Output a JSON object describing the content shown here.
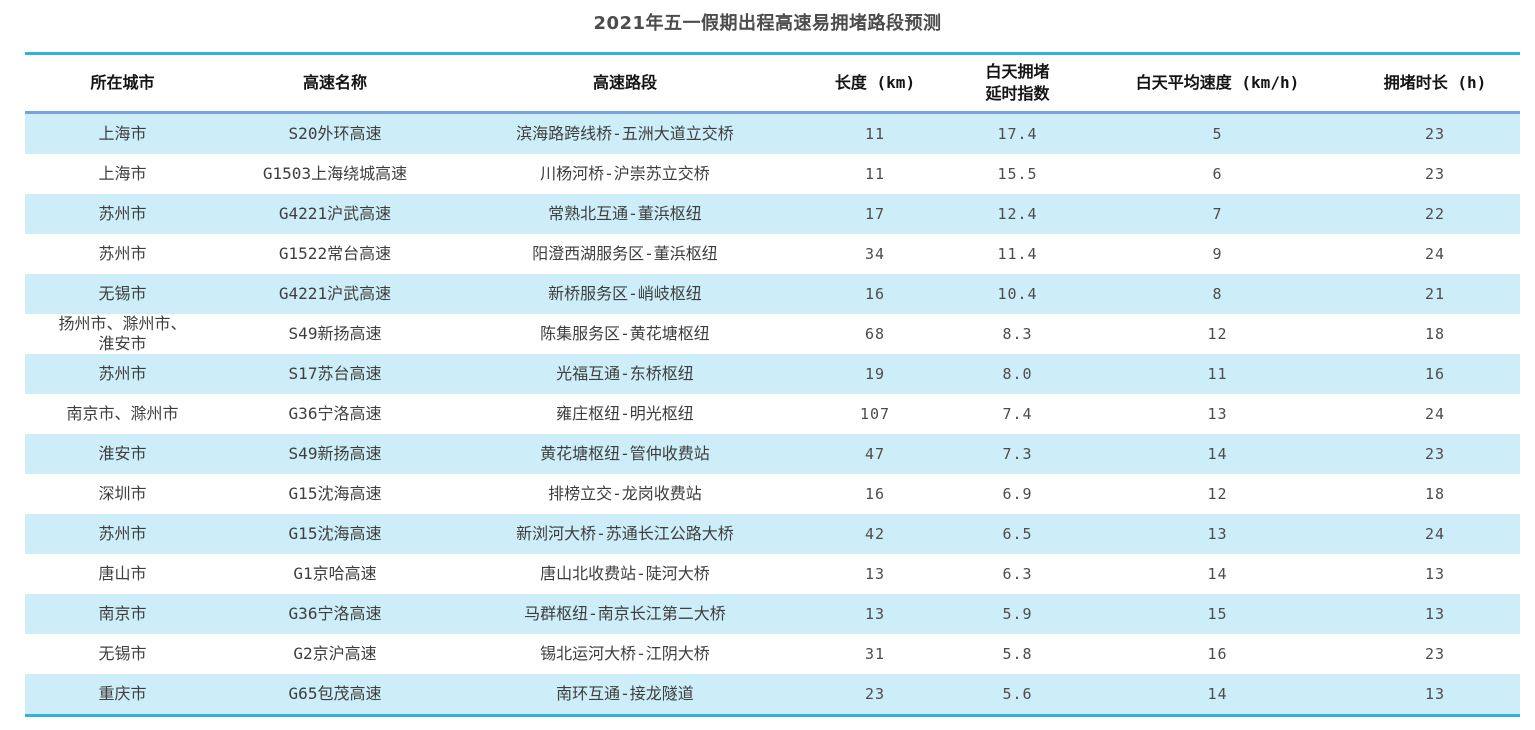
{
  "page": {
    "accent_colors": {
      "rule_cyan": "#2db5d9",
      "rule_blue_under_header": "#7ba2d8",
      "row_stripe": "#cdedf8",
      "title_text": "#4c4c4c",
      "body_text": "#3e3e3e"
    }
  },
  "chart_data": {
    "type": "table",
    "title": "2021年五一假期出程高速易拥堵路段预测",
    "columns": [
      "所在城市",
      "高速名称",
      "高速路段",
      "长度 (km)",
      "白天拥堵\n延时指数",
      "白天平均速度 (km/h)",
      "拥堵时长 (h)"
    ],
    "column_keys": [
      "city",
      "highway_name",
      "highway_section",
      "length_km",
      "daytime_delay_index",
      "daytime_avg_speed_kmh",
      "congestion_hours"
    ],
    "rows": [
      [
        "上海市",
        "S20外环高速",
        "滨海路跨线桥-五洲大道立交桥",
        "11",
        "17.4",
        "5",
        "23"
      ],
      [
        "上海市",
        "G1503上海绕城高速",
        "川杨河桥-沪崇苏立交桥",
        "11",
        "15.5",
        "6",
        "23"
      ],
      [
        "苏州市",
        "G4221沪武高速",
        "常熟北互通-董浜枢纽",
        "17",
        "12.4",
        "7",
        "22"
      ],
      [
        "苏州市",
        "G1522常台高速",
        "阳澄西湖服务区-董浜枢纽",
        "34",
        "11.4",
        "9",
        "24"
      ],
      [
        "无锡市",
        "G4221沪武高速",
        "新桥服务区-峭岐枢纽",
        "16",
        "10.4",
        "8",
        "21"
      ],
      [
        "扬州市、滁州市、\n淮安市",
        "S49新扬高速",
        "陈集服务区-黄花塘枢纽",
        "68",
        "8.3",
        "12",
        "18"
      ],
      [
        "苏州市",
        "S17苏台高速",
        "光福互通-东桥枢纽",
        "19",
        "8.0",
        "11",
        "16"
      ],
      [
        "南京市、滁州市",
        "G36宁洛高速",
        "雍庄枢纽-明光枢纽",
        "107",
        "7.4",
        "13",
        "24"
      ],
      [
        "淮安市",
        "S49新扬高速",
        "黄花塘枢纽-管仲收费站",
        "47",
        "7.3",
        "14",
        "23"
      ],
      [
        "深圳市",
        "G15沈海高速",
        "排榜立交-龙岗收费站",
        "16",
        "6.9",
        "12",
        "18"
      ],
      [
        "苏州市",
        "G15沈海高速",
        "新浏河大桥-苏通长江公路大桥",
        "42",
        "6.5",
        "13",
        "24"
      ],
      [
        "唐山市",
        "G1京哈高速",
        "唐山北收费站-陡河大桥",
        "13",
        "6.3",
        "14",
        "13"
      ],
      [
        "南京市",
        "G36宁洛高速",
        "马群枢纽-南京长江第二大桥",
        "13",
        "5.9",
        "15",
        "13"
      ],
      [
        "无锡市",
        "G2京沪高速",
        "锡北运河大桥-江阴大桥",
        "31",
        "5.8",
        "16",
        "23"
      ],
      [
        "重庆市",
        "G65包茂高速",
        "南环互通-接龙隧道",
        "23",
        "5.6",
        "14",
        "13"
      ]
    ],
    "stripe_pattern": "odd-rows-light-cyan",
    "legend_position": "none",
    "grid": false
  }
}
